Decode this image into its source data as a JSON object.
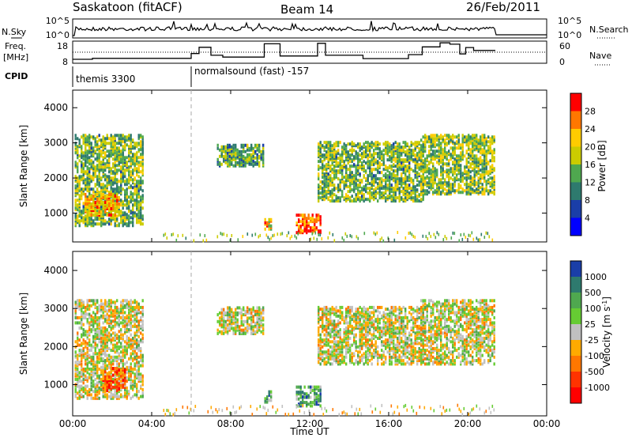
{
  "header": {
    "radar": "Saskatoon (fitACF)",
    "beam": "Beam 14",
    "date": "26/Feb/2011"
  },
  "status_panels": {
    "sky_label": "N.Sky",
    "search_label": "N.Search",
    "freq_label_line1": "Freq.",
    "freq_label_line2": "[MHz]",
    "nave_label": "Nave",
    "cpid_label": "CPID",
    "noise_left_ticks": [
      "10^5",
      "10^0"
    ],
    "noise_right_ticks": [
      "10^5",
      "10^0"
    ],
    "freq_left_ticks": [
      "18",
      "8"
    ],
    "freq_right_ticks": [
      "60",
      "0"
    ],
    "cpid_segments": [
      {
        "start_hour": 0.0,
        "label": "themis 3300"
      },
      {
        "start_hour": 6.0,
        "label": "normalsound (fast) -157"
      }
    ],
    "freq_steps": [
      {
        "from": 0.0,
        "to": 1.0,
        "mhz": 9.8
      },
      {
        "from": 1.0,
        "to": 6.0,
        "mhz": 10.2
      },
      {
        "from": 6.0,
        "to": 6.4,
        "mhz": 12.4
      },
      {
        "from": 6.4,
        "to": 7.0,
        "mhz": 15.2
      },
      {
        "from": 7.0,
        "to": 7.6,
        "mhz": 11.6
      },
      {
        "from": 7.6,
        "to": 9.7,
        "mhz": 10.8
      },
      {
        "from": 9.7,
        "to": 10.5,
        "mhz": 16.8
      },
      {
        "from": 10.5,
        "to": 12.4,
        "mhz": 11.3
      },
      {
        "from": 12.4,
        "to": 12.8,
        "mhz": 17.0
      },
      {
        "from": 12.8,
        "to": 14.7,
        "mhz": 11.6
      },
      {
        "from": 14.7,
        "to": 17.0,
        "mhz": 10.1
      },
      {
        "from": 17.0,
        "to": 17.7,
        "mhz": 11.9
      },
      {
        "from": 17.7,
        "to": 18.6,
        "mhz": 15.4
      },
      {
        "from": 18.6,
        "to": 19.1,
        "mhz": 17.2
      },
      {
        "from": 19.1,
        "to": 19.6,
        "mhz": 16.6
      },
      {
        "from": 19.6,
        "to": 19.9,
        "mhz": 12.2
      },
      {
        "from": 19.9,
        "to": 20.3,
        "mhz": 15.1
      },
      {
        "from": 20.3,
        "to": 21.4,
        "mhz": 13.8
      }
    ],
    "nave_level": 30
  },
  "chart_data": [
    {
      "type": "heatmap",
      "name": "power",
      "xlabel": "",
      "ylabel": "Slant Range [km]",
      "xlim": [
        0,
        24
      ],
      "ylim": [
        180,
        4500
      ],
      "yticks": [
        1000,
        2000,
        3000,
        4000
      ],
      "colorbar_label": "Power [dB]",
      "colorbar_ticks": [
        "28",
        "24",
        "20",
        "16",
        "12",
        "8",
        "4"
      ],
      "colorbar_colors": [
        "#ff0000",
        "#ff7700",
        "#ffcc00",
        "#cccc00",
        "#4fa84f",
        "#2e7a6e",
        "#1a3ea8",
        "#0000ff"
      ],
      "regions": [
        {
          "t0": 0.1,
          "t1": 3.6,
          "r0": 600,
          "r1": 3200,
          "level": 0.45
        },
        {
          "t0": 0.6,
          "t1": 2.4,
          "r0": 900,
          "r1": 1500,
          "level": 0.75
        },
        {
          "t0": 7.3,
          "t1": 9.6,
          "r0": 2300,
          "r1": 2900,
          "level": 0.4
        },
        {
          "t0": 9.7,
          "t1": 10.0,
          "r0": 500,
          "r1": 800,
          "level": 0.7
        },
        {
          "t0": 11.3,
          "t1": 12.5,
          "r0": 400,
          "r1": 900,
          "level": 0.9
        },
        {
          "t0": 12.4,
          "t1": 17.8,
          "r0": 1300,
          "r1": 3000,
          "level": 0.45
        },
        {
          "t0": 17.6,
          "t1": 21.4,
          "r0": 1500,
          "r1": 3200,
          "level": 0.5
        }
      ]
    },
    {
      "type": "heatmap",
      "name": "velocity",
      "xlabel": "Time UT",
      "ylabel": "Slant Range [km]",
      "xlim": [
        0,
        24
      ],
      "ylim": [
        180,
        4500
      ],
      "yticks": [
        1000,
        2000,
        3000,
        4000
      ],
      "xticks": [
        "00:00",
        "04:00",
        "08:00",
        "12:00",
        "16:00",
        "20:00",
        "00:00"
      ],
      "colorbar_label": "Velocity [m s",
      "colorbar_label_sup": "-1",
      "colorbar_label_end": "]",
      "colorbar_ticks": [
        "1000",
        "500",
        "100",
        "25",
        "-25",
        "-100",
        "-500",
        "-1000"
      ],
      "colorbar_colors": [
        "#1a3ea8",
        "#2e7a6e",
        "#4fa84f",
        "#66cc33",
        "#c0c0c0",
        "#ffaa00",
        "#ff7700",
        "#ff3300",
        "#ff0000"
      ],
      "regions": [
        {
          "t0": 0.1,
          "t1": 3.6,
          "r0": 600,
          "r1": 3200,
          "level": 0.5
        },
        {
          "t0": 1.5,
          "t1": 2.7,
          "r0": 800,
          "r1": 1400,
          "level": 0.2
        },
        {
          "t0": 7.3,
          "t1": 9.6,
          "r0": 2300,
          "r1": 3000,
          "level": 0.5
        },
        {
          "t0": 9.7,
          "t1": 10.0,
          "r0": 500,
          "r1": 800,
          "level": 0.75
        },
        {
          "t0": 11.3,
          "t1": 12.5,
          "r0": 400,
          "r1": 900,
          "level": 0.75
        },
        {
          "t0": 12.4,
          "t1": 17.8,
          "r0": 1500,
          "r1": 3000,
          "level": 0.5
        },
        {
          "t0": 17.6,
          "t1": 21.4,
          "r0": 1500,
          "r1": 3200,
          "level": 0.5
        }
      ]
    }
  ]
}
